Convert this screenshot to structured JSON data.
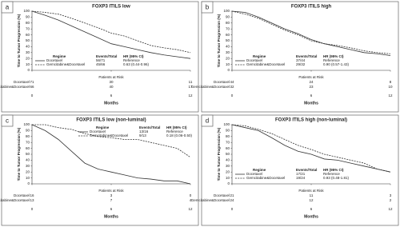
{
  "chart_data": [
    {
      "type": "line",
      "panel": "a",
      "title": "FOXP3 ITILS low",
      "ylabel": "Time to Tumor Progression (%)",
      "xlabel": "Months",
      "x": [
        0,
        1,
        2,
        3,
        4,
        5,
        6,
        7,
        8,
        9,
        10,
        11,
        12
      ],
      "xlim": [
        0,
        12
      ],
      "ylim": [
        0,
        100
      ],
      "xticks": [
        0,
        6,
        12
      ],
      "yticks": [
        0,
        10,
        20,
        30,
        40,
        50,
        60,
        70,
        80,
        90,
        100
      ],
      "legend": "lower left",
      "legend_headers": [
        "Regime",
        "Events/Total",
        "HR (95% CI)"
      ],
      "series": [
        {
          "name": "Docetaxel",
          "color": "#333333",
          "linestyle": "solid",
          "events": "56/71",
          "hr": "Reference",
          "values": [
            100,
            93,
            85,
            75,
            65,
            55,
            45,
            40,
            35,
            30,
            26,
            23,
            20
          ]
        },
        {
          "name": "Gemcitabine&Docetaxel",
          "color": "#333333",
          "linestyle": "dashed",
          "events": "45/66",
          "hr": "0.63 (0.44-0.96)",
          "values": [
            100,
            98,
            95,
            88,
            80,
            72,
            63,
            58,
            50,
            42,
            38,
            35,
            30
          ]
        }
      ],
      "risk_title": "Patients at Risk",
      "risk": [
        [
          71,
          30,
          11
        ],
        [
          66,
          40,
          17
        ]
      ]
    },
    {
      "type": "line",
      "panel": "b",
      "title": "FOXP3 ITILS high",
      "ylabel": "Time to Tumor Progression (%)",
      "xlabel": "Months",
      "x": [
        0,
        1,
        2,
        3,
        4,
        5,
        6,
        7,
        8,
        9,
        10,
        11,
        12
      ],
      "xlim": [
        0,
        12
      ],
      "ylim": [
        0,
        100
      ],
      "xticks": [
        0,
        6,
        12
      ],
      "yticks": [
        0,
        10,
        20,
        30,
        40,
        50,
        60,
        70,
        80,
        90,
        100
      ],
      "legend": "lower left",
      "legend_headers": [
        "Regime",
        "Events/Total",
        "HR (95% CI)"
      ],
      "series": [
        {
          "name": "Docetaxel",
          "color": "#333333",
          "linestyle": "solid",
          "events": "37/44",
          "hr": "Reference",
          "values": [
            100,
            98,
            90,
            80,
            70,
            62,
            52,
            45,
            40,
            35,
            30,
            28,
            25
          ]
        },
        {
          "name": "Gemcitabine&Docetaxel",
          "color": "#333333",
          "linestyle": "dashed",
          "events": "29/32",
          "hr": "0.90 (0.57-1.43)",
          "values": [
            100,
            95,
            88,
            78,
            68,
            60,
            50,
            45,
            42,
            38,
            33,
            30,
            28
          ]
        }
      ],
      "risk_title": "Patients at Risk",
      "risk": [
        [
          44,
          24,
          8
        ],
        [
          32,
          23,
          10
        ]
      ]
    },
    {
      "type": "line",
      "panel": "c",
      "title": "FOXP3 ITILS low (non-luminal)",
      "ylabel": "Time to Tumor Progression (%)",
      "xlabel": "Months",
      "x": [
        0,
        1,
        2,
        3,
        4,
        5,
        6,
        7,
        8,
        9,
        10,
        11,
        12
      ],
      "xlim": [
        0,
        12
      ],
      "ylim": [
        0,
        100
      ],
      "xticks": [
        0,
        6,
        12
      ],
      "yticks": [
        0,
        10,
        20,
        30,
        40,
        50,
        60,
        70,
        80,
        90,
        100
      ],
      "legend": "upper right",
      "legend_headers": [
        "Regime",
        "Events/Total",
        "HR (95% CI)"
      ],
      "series": [
        {
          "name": "Docetaxel",
          "color": "#333333",
          "linestyle": "solid",
          "events": "13/16",
          "hr": "Reference",
          "values": [
            100,
            90,
            75,
            55,
            35,
            25,
            20,
            15,
            10,
            8,
            5,
            5,
            0
          ]
        },
        {
          "name": "Gemcitabine&Docetaxel",
          "color": "#333333",
          "linestyle": "dashed",
          "events": "9/13",
          "hr": "0.18 (0.06-0.50)",
          "values": [
            100,
            100,
            95,
            92,
            85,
            80,
            78,
            75,
            75,
            70,
            65,
            60,
            45
          ]
        }
      ],
      "risk_title": "Patients at Risk",
      "risk": [
        [
          16,
          3,
          0
        ],
        [
          13,
          7,
          4
        ]
      ]
    },
    {
      "type": "line",
      "panel": "d",
      "title": "FOXP3 ITILS high (non-luminal)",
      "ylabel": "Time to Tumor Progression (%)",
      "xlabel": "Months",
      "x": [
        0,
        1,
        2,
        3,
        4,
        5,
        6,
        7,
        8,
        9,
        10,
        11,
        12
      ],
      "xlim": [
        0,
        12
      ],
      "ylim": [
        0,
        100
      ],
      "xticks": [
        0,
        6,
        12
      ],
      "yticks": [
        0,
        10,
        20,
        30,
        40,
        50,
        60,
        70,
        80,
        90,
        100
      ],
      "legend": "lower left",
      "legend_headers": [
        "Regime",
        "Events/Total",
        "HR (95% CI)"
      ],
      "series": [
        {
          "name": "Docetaxel",
          "color": "#333333",
          "linestyle": "solid",
          "events": "17/21",
          "hr": "Reference",
          "values": [
            100,
            95,
            90,
            78,
            65,
            55,
            50,
            42,
            40,
            35,
            30,
            25,
            20
          ]
        },
        {
          "name": "Gemcitabine&Docetaxel",
          "color": "#333333",
          "linestyle": "dashed",
          "events": "19/24",
          "hr": "0.93 (0.48-1.81)",
          "values": [
            100,
            98,
            92,
            85,
            75,
            65,
            58,
            50,
            45,
            40,
            35,
            25,
            20
          ]
        }
      ],
      "risk_title": "Patients at Risk",
      "risk": [
        [
          21,
          11,
          3
        ],
        [
          24,
          12,
          2
        ]
      ]
    }
  ]
}
